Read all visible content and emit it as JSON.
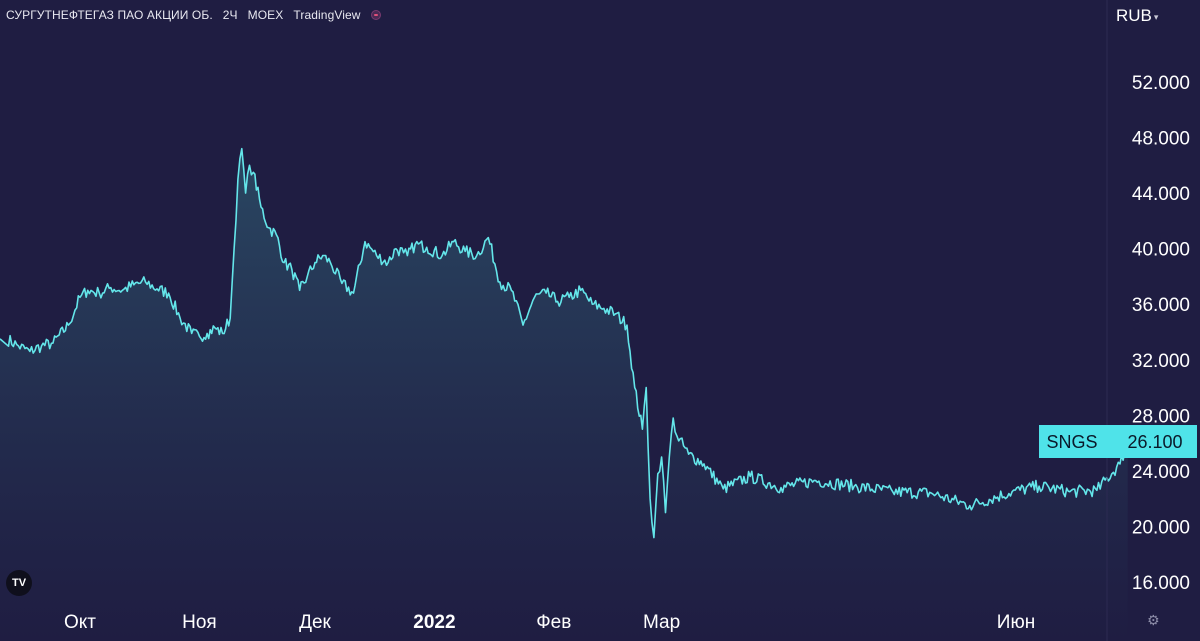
{
  "header": {
    "symbol_name": "СУРГУТНЕФТЕГАЗ ПАО АКЦИИ ОБ.",
    "interval": "2Ч",
    "exchange": "MOEX",
    "provider": "TradingView"
  },
  "currency": {
    "label": "RUB",
    "caret": "▾"
  },
  "logo": {
    "text": "TV"
  },
  "settings_icon": "gear-icon",
  "colors": {
    "background": "#1f1d42",
    "line": "#64e6ea",
    "area_top": "#2b4c66",
    "label_bg": "#4fe3e9",
    "label_text": "#0a1a2a"
  },
  "chart_data": {
    "type": "area",
    "title": "",
    "xlabel": "",
    "ylabel": "",
    "ylim": [
      14.5,
      56.0
    ],
    "y_ticks": [
      "16.000",
      "20.000",
      "24.000",
      "28.000",
      "32.000",
      "36.000",
      "40.000",
      "44.000",
      "48.000",
      "52.000"
    ],
    "x_ticks": [
      {
        "label": "Окт",
        "date": "2021-10-01",
        "bold": false
      },
      {
        "label": "Ноя",
        "date": "2021-11-01",
        "bold": false
      },
      {
        "label": "Дек",
        "date": "2021-12-01",
        "bold": false
      },
      {
        "label": "2022",
        "date": "2022-01-01",
        "bold": true
      },
      {
        "label": "Фев",
        "date": "2022-02-01",
        "bold": false
      },
      {
        "label": "Мар",
        "date": "2022-03-01",
        "bold": false
      },
      {
        "label": "Июн",
        "date": "2022-06-01",
        "bold": false
      }
    ],
    "last_value_label": {
      "symbol": "SNGS",
      "value": "26.100"
    },
    "series": [
      {
        "x": [
          "2021-09-12",
          "2021-09-15",
          "2021-09-18",
          "2021-09-21",
          "2021-09-24",
          "2021-09-28",
          "2021-10-01",
          "2021-10-03",
          "2021-10-06",
          "2021-10-09",
          "2021-10-12",
          "2021-10-15",
          "2021-10-18",
          "2021-10-21",
          "2021-10-24",
          "2021-10-27",
          "2021-10-30",
          "2021-11-01",
          "2021-11-03",
          "2021-11-05",
          "2021-11-07",
          "2021-11-09",
          "2021-11-10",
          "2021-11-11",
          "2021-11-12",
          "2021-11-13",
          "2021-11-14",
          "2021-11-15",
          "2021-11-17",
          "2021-11-19",
          "2021-11-21",
          "2021-11-23",
          "2021-11-25",
          "2021-11-27",
          "2021-11-29",
          "2021-12-01",
          "2021-12-03",
          "2021-12-05",
          "2021-12-08",
          "2021-12-11",
          "2021-12-14",
          "2021-12-17",
          "2021-12-20",
          "2021-12-22",
          "2021-12-24",
          "2021-12-25",
          "2021-12-27",
          "2021-12-30",
          "2022-01-03",
          "2022-01-06",
          "2022-01-09",
          "2022-01-12",
          "2022-01-15",
          "2022-01-18",
          "2022-01-21",
          "2022-01-24",
          "2022-01-27",
          "2022-01-30",
          "2022-02-02",
          "2022-02-05",
          "2022-02-08",
          "2022-02-11",
          "2022-02-14",
          "2022-02-17",
          "2022-02-20",
          "2022-02-22",
          "2022-02-24",
          "2022-02-25",
          "2022-02-26",
          "2022-02-27",
          "2022-02-28",
          "2022-03-01",
          "2022-03-02",
          "2022-03-03",
          "2022-03-04",
          "2022-03-05",
          "2022-03-08",
          "2022-03-12",
          "2022-03-17",
          "2022-03-24",
          "2022-04-01",
          "2022-04-10",
          "2022-04-20",
          "2022-04-30",
          "2022-05-10",
          "2022-05-20",
          "2022-05-31",
          "2022-06-07",
          "2022-06-15",
          "2022-06-22",
          "2022-06-28",
          "2022-06-30"
        ],
        "values": [
          33.5,
          33.0,
          32.6,
          33.0,
          33.2,
          34.5,
          36.5,
          37.0,
          36.8,
          37.2,
          37.0,
          37.4,
          37.6,
          37.1,
          36.8,
          35.0,
          33.9,
          33.7,
          33.9,
          34.3,
          33.9,
          35.0,
          40.0,
          45.0,
          47.2,
          44.0,
          46.0,
          45.5,
          43.0,
          41.5,
          41.0,
          39.0,
          38.5,
          37.0,
          38.0,
          39.0,
          39.5,
          39.0,
          37.5,
          36.8,
          40.5,
          39.5,
          39.0,
          40.0,
          39.7,
          39.5,
          40.3,
          40.1,
          39.5,
          40.5,
          39.8,
          39.5,
          40.8,
          37.6,
          37.0,
          34.5,
          36.5,
          36.8,
          36.2,
          36.5,
          37.0,
          36.0,
          35.7,
          35.3,
          34.5,
          30.0,
          27.0,
          30.0,
          22.0,
          19.2,
          23.8,
          25.0,
          21.0,
          25.0,
          27.8,
          26.5,
          25.2,
          24.5,
          22.7,
          23.6,
          22.8,
          23.3,
          22.9,
          22.5,
          22.4,
          21.5,
          22.5,
          22.9,
          22.5,
          22.6,
          24.5,
          26.1
        ]
      }
    ]
  }
}
